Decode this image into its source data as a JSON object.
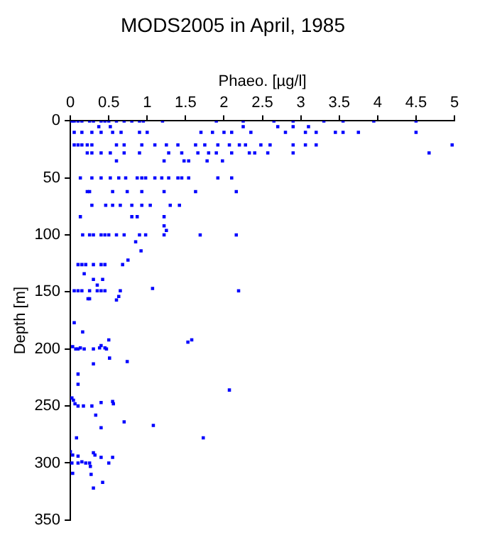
{
  "chart_data": {
    "type": "scatter",
    "title": "MODS2005 in April, 1985",
    "xlabel": "Phaeo. [µg/l]",
    "ylabel": "Depth [m]",
    "xlim": [
      0,
      5
    ],
    "xticks": [
      0,
      0.5,
      1,
      1.5,
      2,
      2.5,
      3,
      3.5,
      4,
      4.5,
      5
    ],
    "ylim": [
      350,
      0
    ],
    "yticks": [
      0,
      50,
      100,
      150,
      200,
      250,
      300,
      350
    ],
    "marker": "square",
    "grid": false,
    "series": [
      {
        "color": "#0000ff",
        "x": [
          0.02,
          0.05,
          0.1,
          0.15,
          0.25,
          0.3,
          0.4,
          0.45,
          0.5,
          0.6,
          0.7,
          0.8,
          0.9,
          0.95,
          1.2,
          1.9,
          2.25,
          2.65,
          2.9,
          3.3,
          3.55,
          3.95,
          4.5,
          0.37,
          0.52,
          2.25,
          2.7,
          2.9,
          3.1,
          0.05,
          0.15,
          0.28,
          0.4,
          0.55,
          0.66,
          0.9,
          1.0,
          1.7,
          1.85,
          2.0,
          2.1,
          2.35,
          2.8,
          3.06,
          3.2,
          3.45,
          3.55,
          3.75,
          4.5,
          0.05,
          0.1,
          0.15,
          0.22,
          0.28,
          0.6,
          0.7,
          0.93,
          1.1,
          1.25,
          1.4,
          1.63,
          1.75,
          1.92,
          2.07,
          2.2,
          2.28,
          2.48,
          2.6,
          2.9,
          3.06,
          3.2,
          4.97,
          0.22,
          0.28,
          0.4,
          0.52,
          0.7,
          0.9,
          1.28,
          1.45,
          1.66,
          1.8,
          1.9,
          2.1,
          2.33,
          2.4,
          2.57,
          2.9,
          4.67,
          0.6,
          1.22,
          1.48,
          1.54,
          1.78,
          1.98,
          0.13,
          0.28,
          0.4,
          0.52,
          0.63,
          0.72,
          0.87,
          0.93,
          0.98,
          1.1,
          1.19,
          1.28,
          1.4,
          1.45,
          1.54,
          1.92,
          2.1,
          0.22,
          0.25,
          0.55,
          0.74,
          0.93,
          1.22,
          1.63,
          2.16,
          0.28,
          0.46,
          0.55,
          0.65,
          0.8,
          0.93,
          1.04,
          1.3,
          1.42,
          0.13,
          0.8,
          0.87,
          1.22,
          1.22,
          1.25,
          0.16,
          0.25,
          0.3,
          0.4,
          0.45,
          0.5,
          0.6,
          0.7,
          0.9,
          0.98,
          1.22,
          1.69,
          2.16,
          0.85,
          0.92,
          0.75,
          0.1,
          0.15,
          0.2,
          0.3,
          0.4,
          0.45,
          0.68,
          0.18,
          0.3,
          0.42,
          0.35,
          0.05,
          0.1,
          0.15,
          0.25,
          0.35,
          0.4,
          0.45,
          0.65,
          1.07,
          2.19,
          0.25,
          0.63,
          0.6,
          0.23,
          0.05,
          0.16,
          0.5,
          1.53,
          1.58,
          0.03,
          0.07,
          0.1,
          0.13,
          0.18,
          0.3,
          0.38,
          0.4,
          0.45,
          0.47,
          0.51,
          0.74,
          0.3,
          0.1,
          0.1,
          2.07,
          0.02,
          0.04,
          0.06,
          0.1,
          0.17,
          0.28,
          0.4,
          0.55,
          0.56,
          0.33,
          0.7,
          1.08,
          0.4,
          1.73,
          0.08,
          0.0,
          0.03,
          0.1,
          0.3,
          0.32,
          0.4,
          0.55,
          0.02,
          0.1,
          0.15,
          0.2,
          0.25,
          0.5,
          0.26,
          0.03,
          0.27,
          0.42,
          0.3
        ],
        "values": [
          0,
          0,
          0,
          0,
          0,
          0,
          0,
          0,
          0,
          0,
          0,
          0,
          0,
          0,
          0,
          0,
          0,
          0,
          0,
          0,
          0,
          0,
          0,
          5,
          5,
          5,
          5,
          5,
          5,
          10,
          10,
          10,
          10,
          10,
          10,
          10,
          10,
          10,
          10,
          10,
          10,
          10,
          10,
          10,
          10,
          10,
          10,
          10,
          10,
          21,
          21,
          21,
          21,
          21,
          21,
          21,
          21,
          21,
          21,
          21,
          21,
          21,
          21,
          21,
          21,
          21,
          21,
          21,
          21,
          21,
          21,
          21,
          28,
          28,
          28,
          28,
          28,
          28,
          28,
          28,
          28,
          28,
          28,
          28,
          28,
          28,
          28,
          28,
          28,
          35,
          35,
          35,
          35,
          35,
          35,
          50,
          50,
          50,
          50,
          50,
          50,
          50,
          50,
          50,
          50,
          50,
          50,
          50,
          50,
          50,
          50,
          50,
          62,
          62,
          62,
          62,
          62,
          62,
          62,
          62,
          74,
          74,
          74,
          74,
          74,
          74,
          74,
          74,
          74,
          84,
          84,
          84,
          84,
          92,
          96,
          100,
          100,
          100,
          100,
          100,
          100,
          100,
          100,
          100,
          100,
          100,
          100,
          100,
          106,
          114,
          122,
          126,
          126,
          126,
          126,
          126,
          126,
          126,
          134,
          139,
          139,
          144,
          149,
          149,
          149,
          149,
          149,
          149,
          149,
          149,
          147,
          149,
          156,
          154,
          157,
          156,
          177,
          185,
          192,
          194,
          192,
          198,
          200,
          200,
          199,
          200,
          200,
          199,
          197,
          199,
          200,
          208,
          211,
          213,
          222,
          231,
          236,
          243,
          245,
          248,
          250,
          250,
          250,
          247,
          246,
          248,
          258,
          264,
          267,
          269,
          278,
          278,
          290,
          293,
          294,
          291,
          293,
          295,
          295,
          300,
          300,
          299,
          300,
          300,
          300,
          303,
          309,
          310,
          317,
          322
        ]
      }
    ]
  }
}
